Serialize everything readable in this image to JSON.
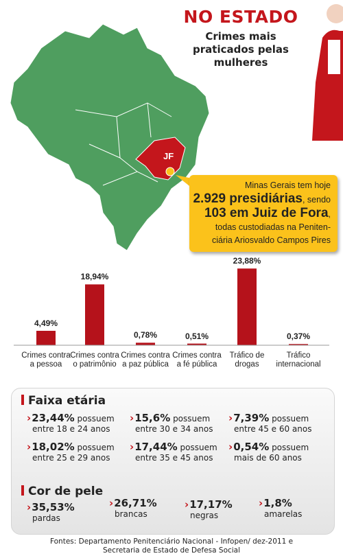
{
  "header": {
    "title": "NO ESTADO",
    "subtitle": "Crimes mais praticados pelas mulheres"
  },
  "map": {
    "label": "JF"
  },
  "callout": {
    "line1": "Minas Gerais tem hoje",
    "highlight1": "2.929 presidiárias",
    "mid1": ", sendo",
    "highlight2": "103 em Juiz de Fora",
    "mid2": ",",
    "line3": "todas custodiadas na Peniten-",
    "line4": "ciária Ariosvaldo Campos Pires"
  },
  "chart_data": {
    "type": "bar",
    "categories": [
      "Crimes contra a pessoa",
      "Crimes contra o patrimônio",
      "Crimes contra a paz pública",
      "Crimes contra a fé pública",
      "Tráfico de drogas",
      "Tráfico internacional"
    ],
    "values": [
      4.49,
      18.94,
      0.78,
      0.51,
      23.88,
      0.37
    ],
    "value_labels": [
      "4,49%",
      "18,94%",
      "0,78%",
      "0,51%",
      "23,88%",
      "0,37%"
    ],
    "color": "#b5121b",
    "ylim": [
      0,
      25
    ]
  },
  "age": {
    "title": "Faixa etária",
    "items": [
      {
        "value": "23,44%",
        "verb": "possuem",
        "text": "entre 18 e 24 anos"
      },
      {
        "value": "15,6%",
        "verb": "possuem",
        "text": "entre 30 e 34 anos"
      },
      {
        "value": "7,39%",
        "verb": "possuem",
        "text": "entre 45 e 60 anos"
      },
      {
        "value": "18,02%",
        "verb": "possuem",
        "text": "entre 25 e 29 anos"
      },
      {
        "value": "17,44%",
        "verb": "possuem",
        "text": "entre 35 e 45 anos"
      },
      {
        "value": "0,54%",
        "verb": "possuem",
        "text": "mais de 60 anos"
      }
    ]
  },
  "skin": {
    "title": "Cor de pele",
    "items": [
      {
        "value": "35,53%",
        "text": "pardas"
      },
      {
        "value": "26,71%",
        "text": "brancas"
      },
      {
        "value": "17,17%",
        "text": "negras"
      },
      {
        "value": "1,8%",
        "text": "amarelas"
      }
    ]
  },
  "sources": "Fontes: Departamento Penitenciário Nacional - Infopen/ dez-2011 e Secretaria de Estado de Defesa Social"
}
